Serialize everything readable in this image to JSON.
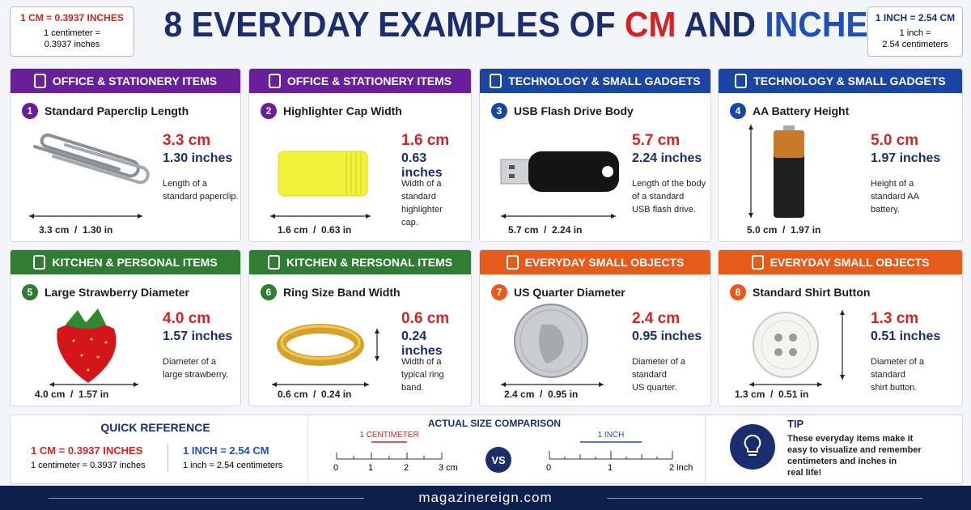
{
  "header": {
    "title": {
      "lead": "8 EVERYDAY EXAMPLES OF",
      "cm": "CM",
      "and": "AND",
      "inches": "INCHES"
    },
    "left_box": {
      "heading": "1 CM = 0.3937 INCHES",
      "lines": [
        "1 centimeter =",
        "0.3937 inches"
      ]
    },
    "right_box": {
      "heading": "1 INCH = 2.54 CM",
      "lines": [
        "1 inch =",
        "2.54 centimeters"
      ]
    }
  },
  "cards": [
    {
      "category": "OFFICE & STATIONERY ITEMS",
      "number": 1,
      "title": "Standard Paperclip Length",
      "cm": "3.3 cm",
      "inches": "1.30 inches",
      "description": [
        "Length of a",
        "standard paperclip."
      ],
      "measure": "3.3 cm  /  1.30 in"
    },
    {
      "category": "OFFICE & STATIONERY ITEMS",
      "number": 2,
      "title": "Highlighter Cap Width",
      "cm": "1.6 cm",
      "inches": "0.63 inches",
      "description": [
        "Width of a",
        "standard highlighter",
        "cap."
      ],
      "measure": "1.6 cm  /  0.63 in"
    },
    {
      "category": "TECHNOLOGY & SMALL GADGETS",
      "number": 3,
      "title": "USB Flash Drive Body",
      "cm": "5.7 cm",
      "inches": "2.24 inches",
      "description": [
        "Length of the body",
        "of a standard",
        "USB flash drive."
      ],
      "measure": "5.7 cm  /  2.24 in"
    },
    {
      "category": "TECHNOLOGY & SMALL GADGETS",
      "number": 4,
      "title": "AA Battery Height",
      "cm": "5.0 cm",
      "inches": "1.97 inches",
      "description": [
        "Height of a",
        "standard AA",
        "battery."
      ],
      "measure": "5.0 cm  /  1.97 in"
    },
    {
      "category": "KITCHEN & PERSONAL ITEMS",
      "number": 5,
      "title": "Large Strawberry Diameter",
      "cm": "4.0 cm",
      "inches": "1.57 inches",
      "description": [
        "Diameter of a",
        "large strawberry."
      ],
      "measure": "4.0 cm  /  1.57 in"
    },
    {
      "category": "KITCHEN & RERSONAL ITEMS",
      "number": 6,
      "title": "Ring Size Band Width",
      "cm": "0.6 cm",
      "inches": "0.24 inches",
      "description": [
        "Width of a",
        "typical ring",
        "band."
      ],
      "measure": "0.6 cm  /  0.24 in"
    },
    {
      "category": "EVERYDAY SMALL OBJECTS",
      "number": 7,
      "title": "US Quarter Diameter",
      "cm": "2.4 cm",
      "inches": "0.95 inches",
      "description": [
        "Diameter of a",
        "standard",
        "US quarter."
      ],
      "measure": "2.4 cm  /  0.95 in"
    },
    {
      "category": "EVERYDAY SMALL OBJECTS",
      "number": 8,
      "title": "Standard Shirt Button",
      "cm": "1.3 cm",
      "inches": "0.51 inches",
      "description": [
        "Diameter of a",
        "standard",
        "shirt button."
      ],
      "measure": "1.3 cm  /  0.51 in"
    }
  ],
  "quick_reference": {
    "title": "QUICK REFERENCE",
    "cm": {
      "heading": "1 CM = 0.3937 INCHES",
      "line": "1 centimeter = 0.3937 inches"
    },
    "inch": {
      "heading": "1 INCH = 2.54 CM",
      "line": "1 inch = 2.54 centimeters"
    }
  },
  "comparison": {
    "title": "ACTUAL SIZE COMPARISON",
    "cm_ruler": {
      "label": "1 CENTIMETER",
      "ticks": [
        "0",
        "1",
        "2",
        "3 cm"
      ]
    },
    "vs": "VS",
    "inch_ruler": {
      "label": "1 INCH",
      "ticks": [
        "0",
        "1",
        "2 inch"
      ]
    }
  },
  "tip": {
    "title": "TIP",
    "lines": [
      "These everyday items make it",
      "easy to visualize and remember",
      "centimeters and inches in",
      "real life!"
    ]
  },
  "footer": {
    "site": "magazinereign.com"
  }
}
